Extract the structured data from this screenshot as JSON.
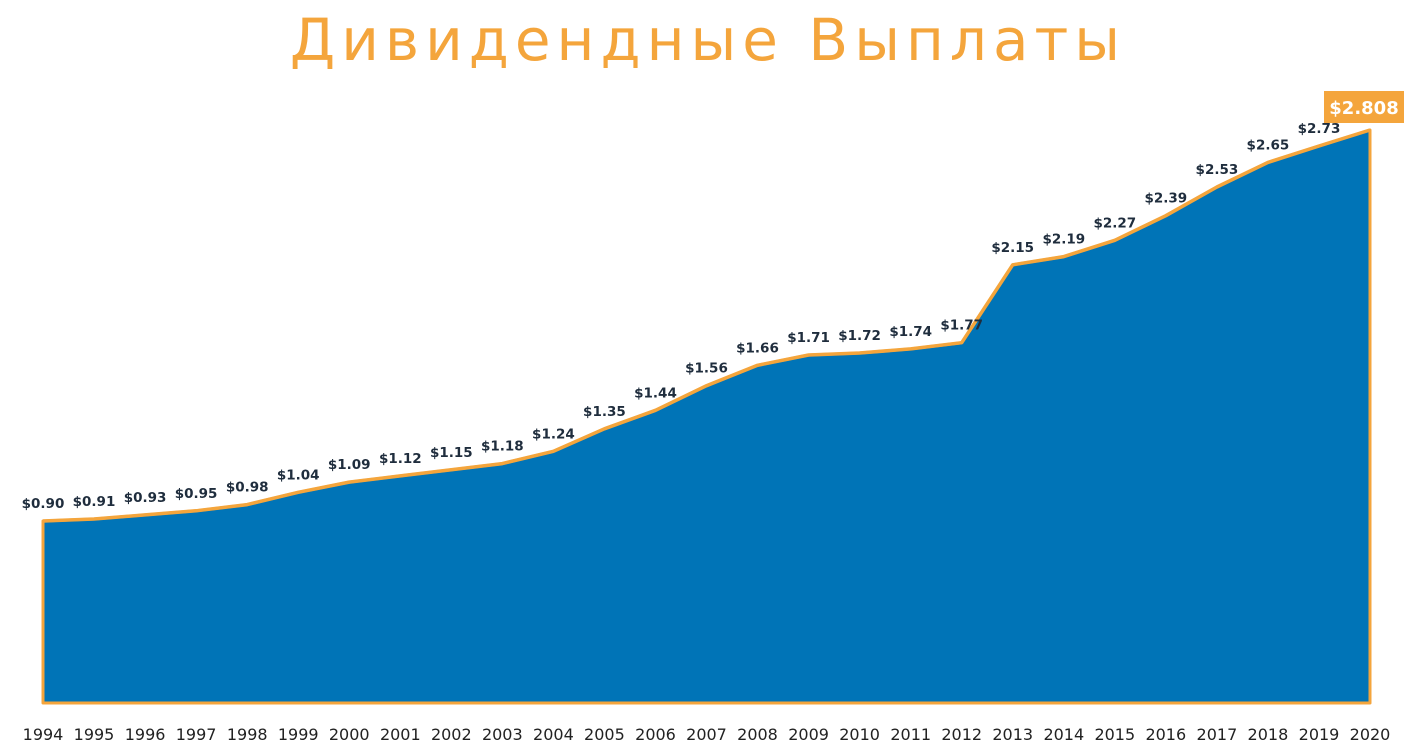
{
  "chart_data": {
    "type": "area",
    "title": "Дивидендные Выплаты",
    "x": [
      "1994",
      "1995",
      "1996",
      "1997",
      "1998",
      "1999",
      "2000",
      "2001",
      "2002",
      "2003",
      "2004",
      "2005",
      "2006",
      "2007",
      "2008",
      "2009",
      "2010",
      "2011",
      "2012",
      "2013",
      "2014",
      "2015",
      "2016",
      "2017",
      "2018",
      "2019",
      "2020"
    ],
    "values": [
      0.9,
      0.91,
      0.93,
      0.95,
      0.98,
      1.04,
      1.09,
      1.12,
      1.15,
      1.18,
      1.24,
      1.35,
      1.44,
      1.56,
      1.66,
      1.71,
      1.72,
      1.74,
      1.77,
      2.15,
      2.19,
      2.27,
      2.39,
      2.53,
      2.65,
      2.73,
      2.808
    ],
    "value_labels": [
      "$0.90",
      "$0.91",
      "$0.93",
      "$0.95",
      "$0.98",
      "$1.04",
      "$1.09",
      "$1.12",
      "$1.15",
      "$1.18",
      "$1.24",
      "$1.35",
      "$1.44",
      "$1.56",
      "$1.66",
      "$1.71",
      "$1.72",
      "$1.74",
      "$1.77",
      "$2.15",
      "$2.19",
      "$2.27",
      "$2.39",
      "$2.53",
      "$2.65",
      "$2.73",
      "$2.808"
    ],
    "xlabel": "",
    "ylabel": "",
    "ylim": [
      0,
      2.808
    ],
    "grid": false,
    "colors": {
      "fill": "#0074B7",
      "outline": "#F4A53C",
      "title": "#F4A53C",
      "highlight_bg": "#F4A53C"
    }
  }
}
